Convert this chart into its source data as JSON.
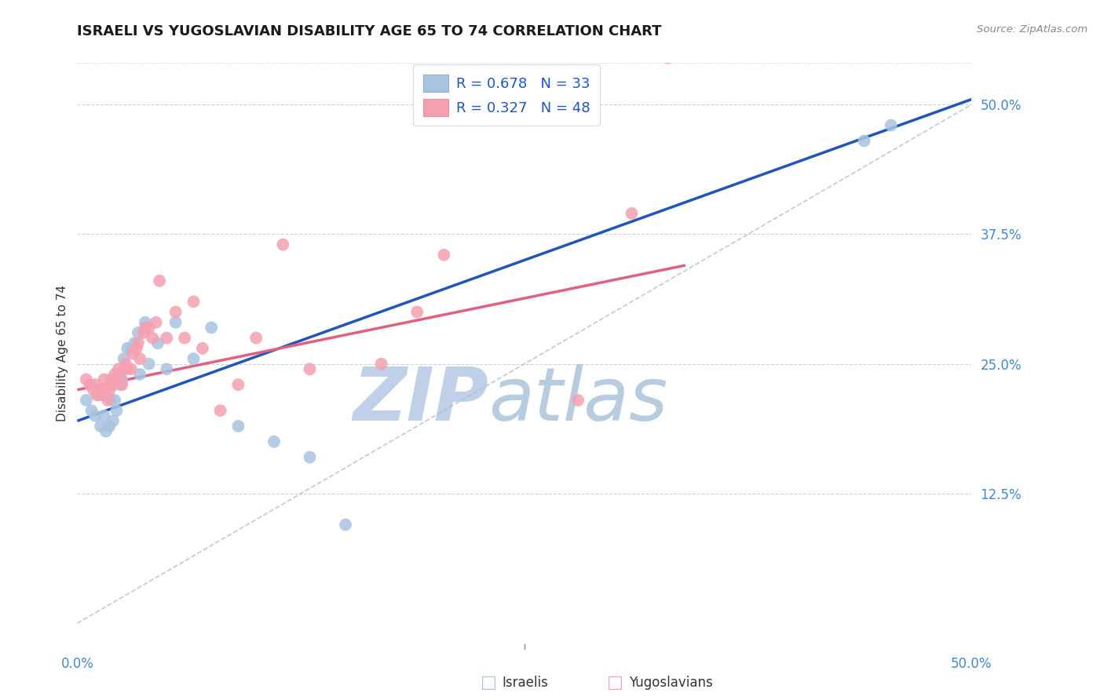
{
  "title": "ISRAELI VS YUGOSLAVIAN DISABILITY AGE 65 TO 74 CORRELATION CHART",
  "source": "Source: ZipAtlas.com",
  "ylabel": "Disability Age 65 to 74",
  "xlim": [
    0.0,
    0.5
  ],
  "ylim": [
    -0.02,
    0.54
  ],
  "yticks": [
    0.125,
    0.25,
    0.375,
    0.5
  ],
  "ytick_labels": [
    "12.5%",
    "25.0%",
    "37.5%",
    "50.0%"
  ],
  "hlines": [
    0.125,
    0.25,
    0.375,
    0.5
  ],
  "israeli_R": 0.678,
  "israeli_N": 33,
  "yugoslav_R": 0.327,
  "yugoslav_N": 48,
  "israeli_color": "#a8c4e0",
  "yugoslav_color": "#f4a0b0",
  "trend_israeli_color": "#2255bb",
  "trend_yugoslav_color": "#e06080",
  "watermark_zip_color": "#c0d0e8",
  "watermark_atlas_color": "#b8cce0",
  "title_color": "#1a1a1a",
  "axis_label_color": "#4488cc",
  "legend_text_color": "#2255bb",
  "background_color": "#ffffff",
  "israeli_points_x": [
    0.005,
    0.008,
    0.01,
    0.012,
    0.013,
    0.015,
    0.016,
    0.018,
    0.019,
    0.02,
    0.021,
    0.022,
    0.024,
    0.025,
    0.026,
    0.028,
    0.03,
    0.032,
    0.034,
    0.035,
    0.038,
    0.04,
    0.045,
    0.05,
    0.055,
    0.065,
    0.075,
    0.09,
    0.11,
    0.13,
    0.15,
    0.44,
    0.455
  ],
  "israeli_points_y": [
    0.215,
    0.205,
    0.2,
    0.22,
    0.19,
    0.2,
    0.185,
    0.19,
    0.215,
    0.195,
    0.215,
    0.205,
    0.23,
    0.235,
    0.255,
    0.265,
    0.265,
    0.27,
    0.28,
    0.24,
    0.29,
    0.25,
    0.27,
    0.245,
    0.29,
    0.255,
    0.285,
    0.19,
    0.175,
    0.16,
    0.095,
    0.465,
    0.48
  ],
  "yugoslav_points_x": [
    0.005,
    0.007,
    0.009,
    0.01,
    0.011,
    0.013,
    0.014,
    0.015,
    0.016,
    0.017,
    0.018,
    0.019,
    0.02,
    0.021,
    0.022,
    0.023,
    0.024,
    0.025,
    0.026,
    0.027,
    0.028,
    0.03,
    0.031,
    0.033,
    0.034,
    0.035,
    0.037,
    0.038,
    0.04,
    0.042,
    0.044,
    0.046,
    0.05,
    0.055,
    0.06,
    0.065,
    0.07,
    0.08,
    0.09,
    0.1,
    0.115,
    0.13,
    0.17,
    0.19,
    0.205,
    0.28,
    0.31,
    0.33
  ],
  "yugoslav_points_y": [
    0.235,
    0.23,
    0.225,
    0.23,
    0.22,
    0.225,
    0.22,
    0.235,
    0.225,
    0.215,
    0.225,
    0.235,
    0.23,
    0.24,
    0.235,
    0.245,
    0.235,
    0.23,
    0.245,
    0.25,
    0.245,
    0.245,
    0.26,
    0.265,
    0.27,
    0.255,
    0.28,
    0.285,
    0.285,
    0.275,
    0.29,
    0.33,
    0.275,
    0.3,
    0.275,
    0.31,
    0.265,
    0.205,
    0.23,
    0.275,
    0.365,
    0.245,
    0.25,
    0.3,
    0.355,
    0.215,
    0.395,
    0.545
  ],
  "blue_line_x": [
    0.0,
    0.5
  ],
  "blue_line_y": [
    0.195,
    0.505
  ],
  "pink_line_x": [
    0.0,
    0.34
  ],
  "pink_line_y": [
    0.225,
    0.345
  ],
  "diag_line_x": [
    0.0,
    0.5
  ],
  "diag_line_y": [
    0.0,
    0.5
  ]
}
